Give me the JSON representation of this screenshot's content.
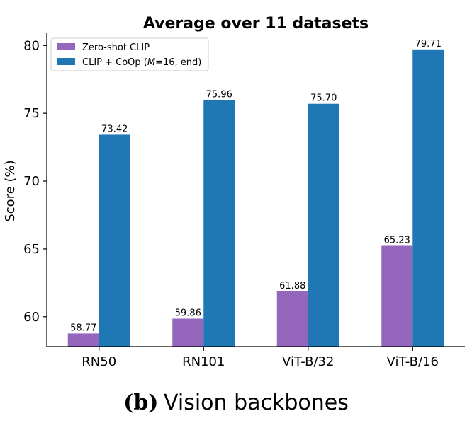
{
  "chart_data": {
    "type": "bar",
    "title": "Average over 11 datasets",
    "xlabel": "",
    "ylabel": "Score (%)",
    "categories": [
      "RN50",
      "RN101",
      "ViT-B/32",
      "ViT-B/16"
    ],
    "series": [
      {
        "name": "Zero-shot CLIP",
        "color": "#9467bd",
        "values": [
          58.77,
          59.86,
          61.88,
          65.23
        ]
      },
      {
        "name": "CLIP + CoOp (M=16, end)",
        "color": "#1f77b4",
        "values": [
          73.42,
          75.96,
          75.7,
          79.71
        ]
      }
    ],
    "data_labels": [
      [
        "58.77",
        "59.86",
        "61.88",
        "65.23"
      ],
      [
        "73.42",
        "75.96",
        "75.70",
        "79.71"
      ]
    ],
    "ylim": [
      57.8,
      80.9
    ],
    "yticks": [
      60,
      65,
      70,
      75,
      80
    ],
    "grid": false,
    "legend_position": "top-left"
  },
  "legend": {
    "zero_shot": "Zero-shot CLIP",
    "coop_prefix": "CLIP + CoOp (",
    "coop_italic": "M",
    "coop_suffix": "=16, end)"
  },
  "caption": {
    "letter": "(b)",
    "text": "Vision backbones"
  }
}
